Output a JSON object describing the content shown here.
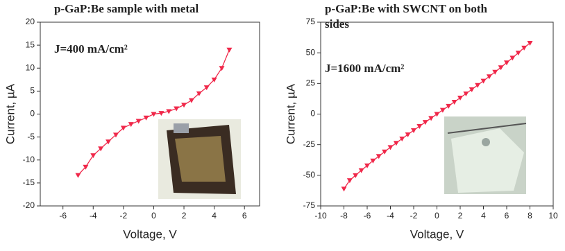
{
  "chart_data": [
    {
      "type": "line",
      "title_lines": [
        "p-GaP:Be sample with metal"
      ],
      "annotation": "J=400 mA/cm²",
      "x_label": "Voltage, V",
      "y_label": "Current, µA",
      "xlim": [
        -7.5,
        7
      ],
      "xticks": [
        -6,
        -4,
        -2,
        0,
        2,
        4,
        6
      ],
      "ylim": [
        -20,
        20
      ],
      "yticks": [
        -20,
        -15,
        -10,
        -5,
        0,
        5,
        10,
        15,
        20
      ],
      "series": [
        {
          "color": "#f0284a",
          "x": [
            -5,
            -4.5,
            -4,
            -3.5,
            -3,
            -2.5,
            -2,
            -1.5,
            -1,
            -0.5,
            0,
            0.5,
            1,
            1.5,
            2,
            2.5,
            3,
            3.5,
            4,
            4.5,
            5
          ],
          "values": [
            -13.3,
            -11.5,
            -9,
            -7.5,
            -6,
            -4.5,
            -3,
            -2.2,
            -1.5,
            -0.8,
            0,
            0.2,
            0.6,
            1.2,
            2,
            3,
            4.5,
            5.8,
            7.5,
            10,
            14
          ]
        }
      ]
    },
    {
      "type": "line",
      "title_lines": [
        "p-GaP:Be with SWCNT on both",
        "sides"
      ],
      "annotation": "J=1600 mA/cm²",
      "x_label": "Voltage, V",
      "y_label": "Current, µA",
      "xlim": [
        -10,
        10
      ],
      "xticks": [
        -10,
        -8,
        -6,
        -4,
        -2,
        0,
        2,
        4,
        6,
        8,
        10
      ],
      "ylim": [
        -75,
        75
      ],
      "yticks": [
        -75,
        -50,
        -25,
        0,
        25,
        50,
        75
      ],
      "series": [
        {
          "color": "#f0284a",
          "x": [
            -8,
            -7.5,
            -7,
            -6.5,
            -6,
            -5.5,
            -5,
            -4.5,
            -4,
            -3.5,
            -3,
            -2.5,
            -2,
            -1.5,
            -1,
            -0.5,
            0,
            0.5,
            1,
            1.5,
            2,
            2.5,
            3,
            3.5,
            4,
            4.5,
            5,
            5.5,
            6,
            6.5,
            7,
            7.5,
            8
          ],
          "values": [
            -61,
            -54.1,
            -50,
            -45.9,
            -42,
            -38.1,
            -34.4,
            -30.7,
            -27.1,
            -23.6,
            -20.1,
            -16.7,
            -13.3,
            -9.9,
            -6.6,
            -3.3,
            0,
            3.3,
            6.6,
            9.9,
            13.3,
            16.7,
            20.1,
            23.6,
            27.1,
            30.7,
            34.4,
            38.1,
            42,
            45.9,
            50,
            54.1,
            58
          ]
        }
      ]
    }
  ]
}
